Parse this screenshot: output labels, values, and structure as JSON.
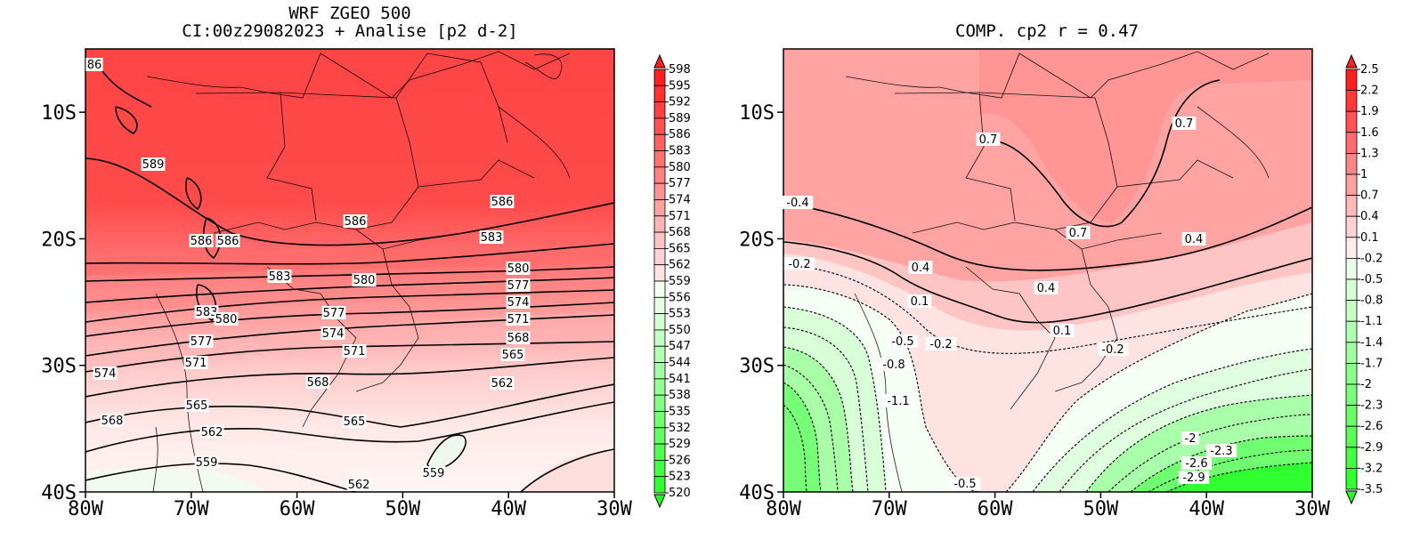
{
  "chart_data": [
    {
      "type": "heatmap",
      "title": "WRF ZGEO 500",
      "subtitle": "CI:00z29082023 + Analise  [p2 d-2]",
      "x_ticks": [
        "80W",
        "70W",
        "60W",
        "50W",
        "40W",
        "30W"
      ],
      "y_ticks": [
        "10S",
        "20S",
        "30S",
        "40S"
      ],
      "xlim": [
        -80,
        -30
      ],
      "ylim": [
        -40,
        -5
      ],
      "colorbar_levels": [
        598,
        595,
        592,
        589,
        586,
        583,
        580,
        577,
        574,
        571,
        568,
        565,
        562,
        559,
        556,
        553,
        550,
        547,
        544,
        541,
        538,
        535,
        532,
        529,
        526,
        523,
        520
      ],
      "contour_labels": [
        "86",
        "589",
        "586",
        "586",
        "586",
        "586",
        "583",
        "583",
        "580",
        "580",
        "583",
        "580",
        "577",
        "577",
        "577",
        "574",
        "574",
        "574",
        "571",
        "571",
        "571",
        "568",
        "568",
        "568",
        "565",
        "565",
        "565",
        "562",
        "562",
        "562",
        "559",
        "559"
      ],
      "colors": {
        "high": "#ff4545",
        "low": "#ffffff",
        "neg_low": "#20ff20"
      }
    },
    {
      "type": "heatmap",
      "title": "COMP. cp2  r =  0.47",
      "x_ticks": [
        "80W",
        "70W",
        "60W",
        "50W",
        "40W",
        "30W"
      ],
      "y_ticks": [
        "10S",
        "20S",
        "30S",
        "40S"
      ],
      "xlim": [
        -80,
        -30
      ],
      "ylim": [
        -40,
        -5
      ],
      "colorbar_levels": [
        "2.5",
        "2.2",
        "1.9",
        "1.6",
        "1.3",
        "1",
        "0.7",
        "0.4",
        "0.1",
        "-0.2",
        "-0.5",
        "-0.8",
        "-1.1",
        "-1.4",
        "-1.7",
        "-2",
        "-2.3",
        "-2.6",
        "-2.9",
        "-3.2",
        "-3.5"
      ],
      "contour_labels": [
        "0.7",
        "0.7",
        "-0.4",
        "0.7",
        "0.4",
        "-0.2",
        "0.4",
        "0.4",
        "0.1",
        "0.1",
        "-0.5",
        "-0.2",
        "-0.2",
        "-0.8",
        "-1.1",
        "-2",
        "-2.3",
        "-2.6",
        "-2.9",
        "-0.5"
      ]
    }
  ]
}
